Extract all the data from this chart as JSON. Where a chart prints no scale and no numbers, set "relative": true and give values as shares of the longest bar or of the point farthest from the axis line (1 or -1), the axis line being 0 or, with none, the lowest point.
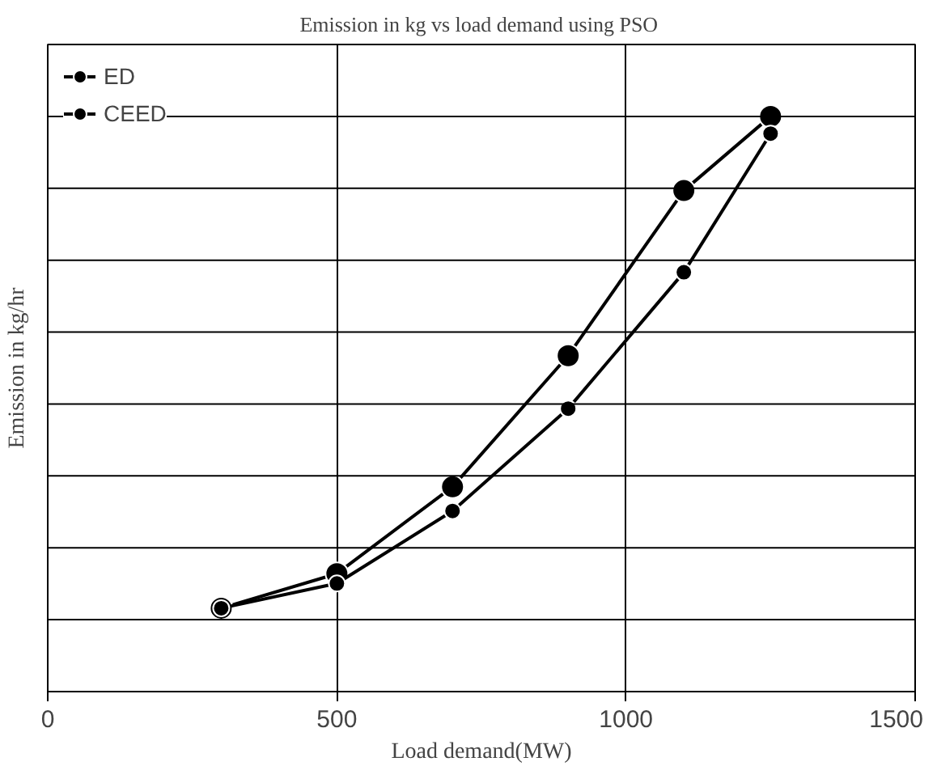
{
  "chart_data": {
    "type": "line",
    "title": "Emission in kg vs  load demand using PSO",
    "xlabel": "Load demand(MW)",
    "ylabel": "Emission in kg/hr",
    "relative": true,
    "x": [
      300,
      500,
      700,
      900,
      1100,
      1250
    ],
    "series": [
      {
        "name": "ED",
        "color": "#000000",
        "values": [
          0.145,
          0.205,
          0.356,
          0.584,
          0.871,
          1.0
        ]
      },
      {
        "name": "CEED",
        "color": "#000000",
        "values": [
          0.145,
          0.188,
          0.314,
          0.492,
          0.729,
          0.97
        ]
      }
    ],
    "xlim": [
      0,
      1500
    ],
    "xticks": [
      0,
      500,
      1000,
      1500
    ],
    "grid": true,
    "legend": "top left",
    "marker": "circle",
    "line_style": "solid"
  }
}
